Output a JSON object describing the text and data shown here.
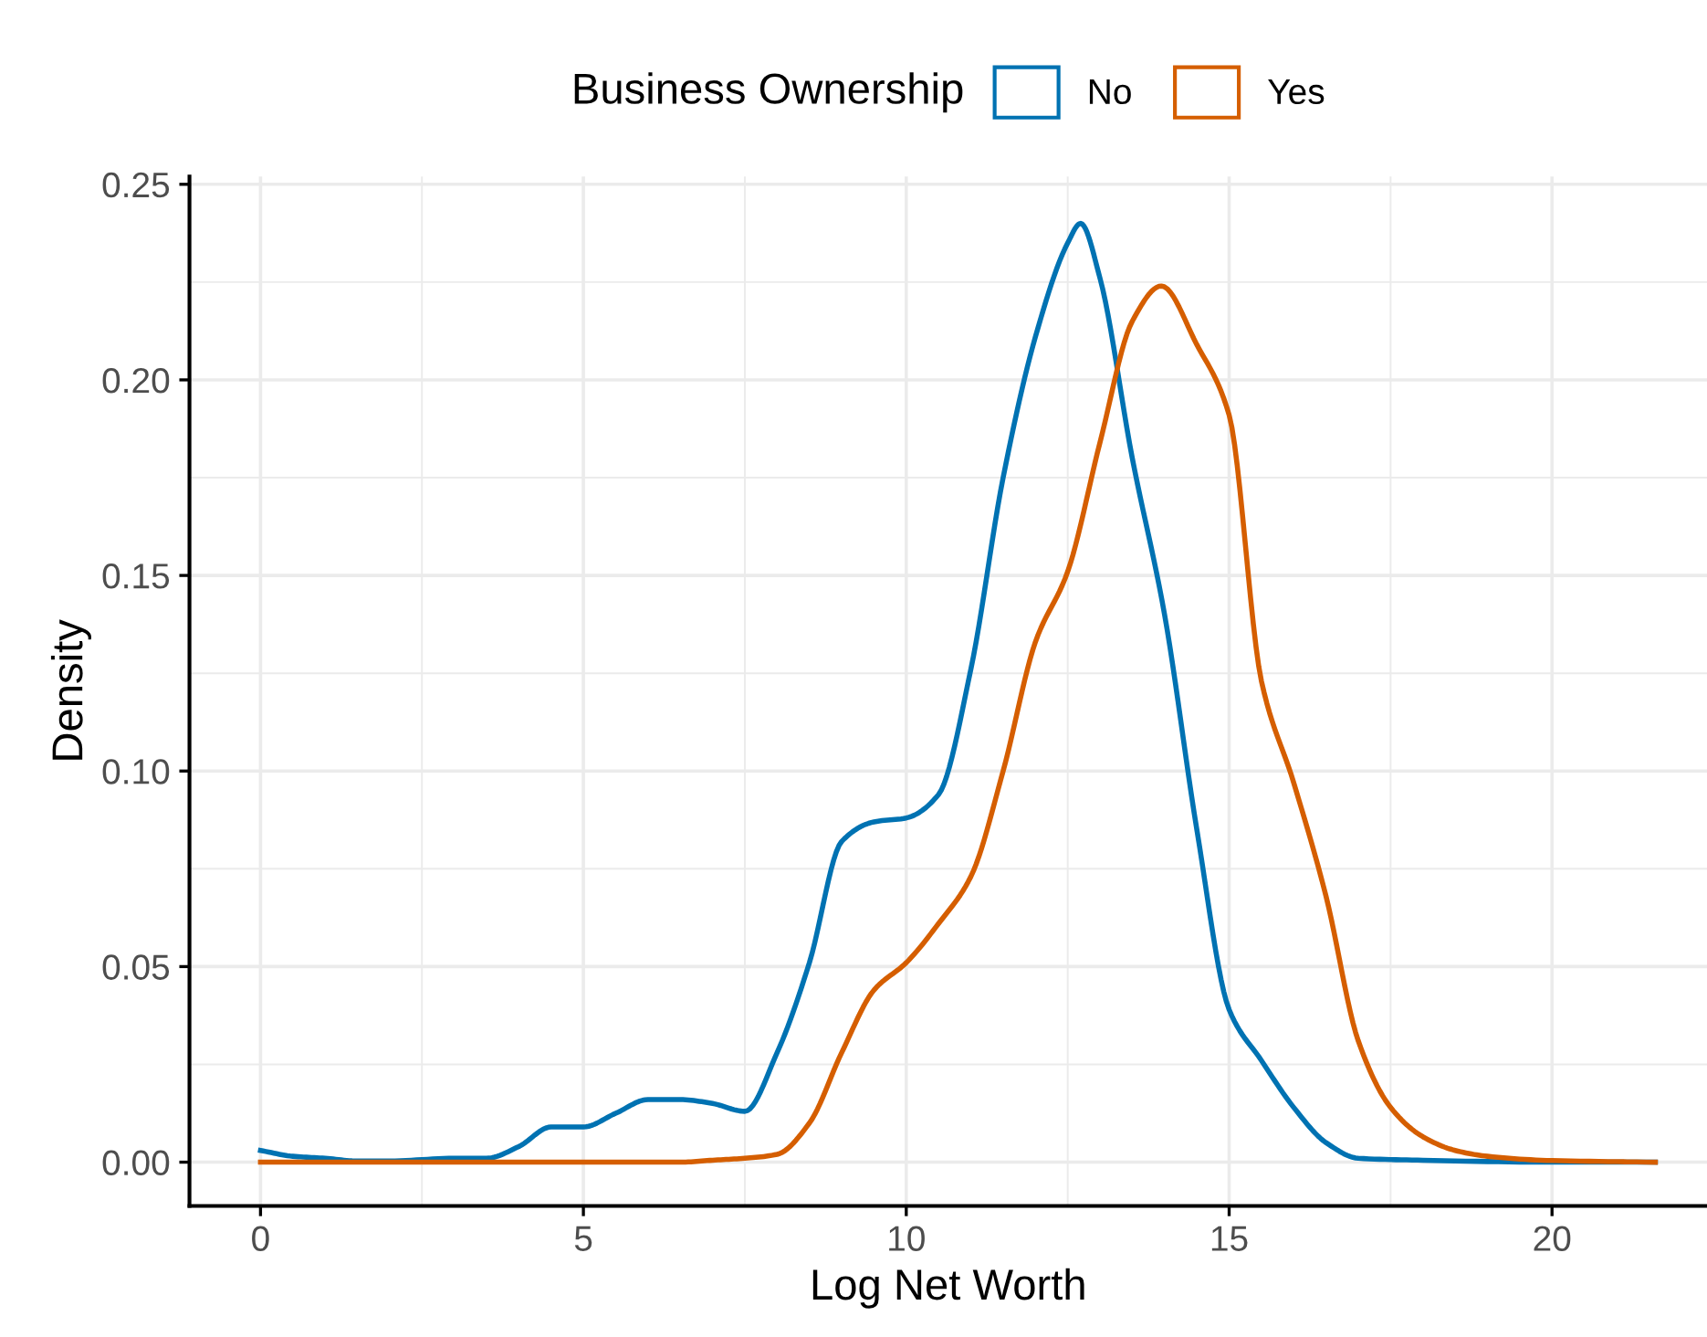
{
  "chart_data": {
    "type": "line",
    "xlabel": "Log Net Worth",
    "ylabel": "Density",
    "legend_title": "Business Ownership",
    "legend": "top",
    "xlim": [
      -1.1,
      22.4
    ],
    "ylim": [
      -0.0112,
      0.252
    ],
    "xticks": [
      0,
      5,
      10,
      15,
      20
    ],
    "yticks": [
      {
        "value": 0,
        "label": "0.00"
      },
      {
        "value": 0.05,
        "label": "0.05"
      },
      {
        "value": 0.1,
        "label": "0.10"
      },
      {
        "value": 0.15,
        "label": "0.15"
      },
      {
        "value": 0.2,
        "label": "0.20"
      },
      {
        "value": 0.25,
        "label": "0.25"
      }
    ],
    "grid": true,
    "marker": "none",
    "line_style": "solid",
    "series": [
      {
        "name": "No",
        "color": "#0072b2",
        "x": [
          0,
          0.5,
          1,
          1.5,
          2,
          3,
          3.5,
          4,
          4.5,
          5,
          5.5,
          6,
          6.5,
          7,
          7.5,
          8,
          8.5,
          9,
          9.5,
          10,
          10.5,
          11,
          11.5,
          12,
          12.5,
          12.7,
          13,
          13.5,
          14,
          14.5,
          15,
          15.5,
          16,
          16.5,
          17,
          18,
          20,
          21.6
        ],
        "values": [
          0.003,
          0.0015,
          0.001,
          0.0003,
          0.0003,
          0.001,
          0.001,
          0.004,
          0.009,
          0.009,
          0.0125,
          0.016,
          0.016,
          0.015,
          0.013,
          0.028,
          0.051,
          0.082,
          0.087,
          0.088,
          0.094,
          0.126,
          0.175,
          0.211,
          0.235,
          0.24,
          0.226,
          0.18,
          0.14,
          0.085,
          0.039,
          0.026,
          0.014,
          0.005,
          0.001,
          0.0005,
          0,
          0
        ]
      },
      {
        "name": "Yes",
        "color": "#d55e00",
        "x": [
          0,
          6.5,
          7,
          7.5,
          8,
          8.5,
          9,
          9.5,
          10,
          10.5,
          11,
          11.5,
          12,
          12.5,
          13,
          13.5,
          13.95,
          14.5,
          15,
          15.5,
          16,
          16.5,
          17,
          17.5,
          18,
          18.5,
          19,
          20,
          21.6
        ],
        "values": [
          0,
          0,
          0.0005,
          0.001,
          0.002,
          0.01,
          0.028,
          0.044,
          0.051,
          0.061,
          0.073,
          0.1,
          0.133,
          0.151,
          0.184,
          0.215,
          0.224,
          0.209,
          0.191,
          0.123,
          0.097,
          0.068,
          0.031,
          0.014,
          0.0065,
          0.003,
          0.0015,
          0.0004,
          0
        ]
      }
    ]
  }
}
